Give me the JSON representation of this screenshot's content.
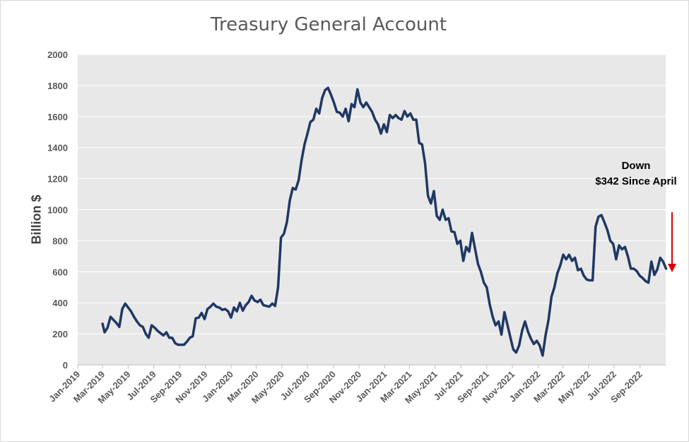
{
  "chart_data": {
    "type": "line",
    "title": "Treasury General Account",
    "ylabel": "Billion $",
    "xlabel": "",
    "ylim": [
      0,
      2000
    ],
    "yticks": [
      0,
      200,
      400,
      600,
      800,
      1000,
      1200,
      1400,
      1600,
      1800,
      2000
    ],
    "xlim": [
      "2019-01-01",
      "2022-11-01"
    ],
    "xtick_labels": [
      "Jan-2019",
      "Mar-2019",
      "May-2019",
      "Jul-2019",
      "Sep-2019",
      "Nov-2019",
      "Jan-2020",
      "Mar-2020",
      "May-2020",
      "Jul-2020",
      "Sep-2020",
      "Nov-2020",
      "Jan-2021",
      "Mar-2021",
      "May-2021",
      "Jul-2021",
      "Sep-2021",
      "Nov-2021",
      "Jan-2022",
      "Mar-2022",
      "May-2022",
      "Jul-2022",
      "Sep-2022"
    ],
    "xtick_dates": [
      "2019-01-01",
      "2019-03-01",
      "2019-05-01",
      "2019-07-01",
      "2019-09-01",
      "2019-11-01",
      "2020-01-01",
      "2020-03-01",
      "2020-05-01",
      "2020-07-01",
      "2020-09-01",
      "2020-11-01",
      "2021-01-01",
      "2021-03-01",
      "2021-05-01",
      "2021-07-01",
      "2021-09-01",
      "2021-11-01",
      "2022-01-01",
      "2022-03-01",
      "2022-05-01",
      "2022-07-01",
      "2022-09-01"
    ],
    "grid": true,
    "series": [
      {
        "color": "#1f3864",
        "points": [
          [
            "2019-03-01",
            265
          ],
          [
            "2019-03-06",
            210
          ],
          [
            "2019-03-13",
            240
          ],
          [
            "2019-03-20",
            310
          ],
          [
            "2019-03-27",
            290
          ],
          [
            "2019-04-03",
            270
          ],
          [
            "2019-04-10",
            245
          ],
          [
            "2019-04-17",
            360
          ],
          [
            "2019-04-24",
            395
          ],
          [
            "2019-05-01",
            370
          ],
          [
            "2019-05-08",
            345
          ],
          [
            "2019-05-15",
            310
          ],
          [
            "2019-05-22",
            280
          ],
          [
            "2019-05-29",
            255
          ],
          [
            "2019-06-05",
            245
          ],
          [
            "2019-06-12",
            200
          ],
          [
            "2019-06-19",
            175
          ],
          [
            "2019-06-26",
            255
          ],
          [
            "2019-07-03",
            240
          ],
          [
            "2019-07-10",
            220
          ],
          [
            "2019-07-17",
            205
          ],
          [
            "2019-07-24",
            190
          ],
          [
            "2019-07-31",
            210
          ],
          [
            "2019-08-07",
            175
          ],
          [
            "2019-08-14",
            175
          ],
          [
            "2019-08-21",
            140
          ],
          [
            "2019-08-28",
            130
          ],
          [
            "2019-09-04",
            130
          ],
          [
            "2019-09-11",
            130
          ],
          [
            "2019-09-18",
            150
          ],
          [
            "2019-09-25",
            175
          ],
          [
            "2019-10-02",
            185
          ],
          [
            "2019-10-09",
            300
          ],
          [
            "2019-10-16",
            305
          ],
          [
            "2019-10-23",
            335
          ],
          [
            "2019-10-30",
            295
          ],
          [
            "2019-11-06",
            360
          ],
          [
            "2019-11-13",
            375
          ],
          [
            "2019-11-20",
            395
          ],
          [
            "2019-11-27",
            375
          ],
          [
            "2019-12-04",
            370
          ],
          [
            "2019-12-11",
            355
          ],
          [
            "2019-12-18",
            360
          ],
          [
            "2019-12-25",
            345
          ],
          [
            "2020-01-01",
            305
          ],
          [
            "2020-01-08",
            370
          ],
          [
            "2020-01-15",
            345
          ],
          [
            "2020-01-22",
            400
          ],
          [
            "2020-01-29",
            350
          ],
          [
            "2020-02-05",
            385
          ],
          [
            "2020-02-12",
            405
          ],
          [
            "2020-02-19",
            445
          ],
          [
            "2020-02-26",
            415
          ],
          [
            "2020-03-04",
            405
          ],
          [
            "2020-03-11",
            420
          ],
          [
            "2020-03-18",
            385
          ],
          [
            "2020-03-25",
            380
          ],
          [
            "2020-04-01",
            375
          ],
          [
            "2020-04-08",
            395
          ],
          [
            "2020-04-15",
            380
          ],
          [
            "2020-04-22",
            500
          ],
          [
            "2020-04-29",
            820
          ],
          [
            "2020-05-06",
            845
          ],
          [
            "2020-05-13",
            920
          ],
          [
            "2020-05-20",
            1060
          ],
          [
            "2020-05-27",
            1140
          ],
          [
            "2020-06-03",
            1130
          ],
          [
            "2020-06-10",
            1190
          ],
          [
            "2020-06-17",
            1320
          ],
          [
            "2020-06-24",
            1420
          ],
          [
            "2020-07-01",
            1490
          ],
          [
            "2020-07-08",
            1565
          ],
          [
            "2020-07-15",
            1580
          ],
          [
            "2020-07-22",
            1650
          ],
          [
            "2020-07-29",
            1620
          ],
          [
            "2020-08-05",
            1720
          ],
          [
            "2020-08-12",
            1770
          ],
          [
            "2020-08-19",
            1785
          ],
          [
            "2020-08-26",
            1740
          ],
          [
            "2020-09-02",
            1690
          ],
          [
            "2020-09-09",
            1630
          ],
          [
            "2020-09-16",
            1625
          ],
          [
            "2020-09-23",
            1600
          ],
          [
            "2020-09-30",
            1650
          ],
          [
            "2020-10-07",
            1570
          ],
          [
            "2020-10-14",
            1680
          ],
          [
            "2020-10-21",
            1660
          ],
          [
            "2020-10-28",
            1775
          ],
          [
            "2020-11-04",
            1690
          ],
          [
            "2020-11-11",
            1660
          ],
          [
            "2020-11-18",
            1690
          ],
          [
            "2020-11-25",
            1660
          ],
          [
            "2020-12-02",
            1630
          ],
          [
            "2020-12-09",
            1580
          ],
          [
            "2020-12-16",
            1550
          ],
          [
            "2020-12-23",
            1490
          ],
          [
            "2020-12-30",
            1550
          ],
          [
            "2021-01-06",
            1500
          ],
          [
            "2021-01-13",
            1610
          ],
          [
            "2021-01-20",
            1590
          ],
          [
            "2021-01-27",
            1610
          ],
          [
            "2021-02-03",
            1590
          ],
          [
            "2021-02-10",
            1580
          ],
          [
            "2021-02-17",
            1635
          ],
          [
            "2021-02-24",
            1600
          ],
          [
            "2021-03-03",
            1620
          ],
          [
            "2021-03-10",
            1580
          ],
          [
            "2021-03-17",
            1580
          ],
          [
            "2021-03-24",
            1430
          ],
          [
            "2021-03-31",
            1420
          ],
          [
            "2021-04-07",
            1300
          ],
          [
            "2021-04-14",
            1090
          ],
          [
            "2021-04-21",
            1040
          ],
          [
            "2021-04-28",
            1120
          ],
          [
            "2021-05-05",
            960
          ],
          [
            "2021-05-12",
            935
          ],
          [
            "2021-05-19",
            1000
          ],
          [
            "2021-05-26",
            935
          ],
          [
            "2021-06-02",
            945
          ],
          [
            "2021-06-09",
            860
          ],
          [
            "2021-06-16",
            855
          ],
          [
            "2021-06-23",
            780
          ],
          [
            "2021-06-30",
            800
          ],
          [
            "2021-07-07",
            670
          ],
          [
            "2021-07-14",
            760
          ],
          [
            "2021-07-21",
            730
          ],
          [
            "2021-07-28",
            850
          ],
          [
            "2021-08-04",
            750
          ],
          [
            "2021-08-11",
            650
          ],
          [
            "2021-08-18",
            600
          ],
          [
            "2021-08-25",
            530
          ],
          [
            "2021-09-01",
            500
          ],
          [
            "2021-09-08",
            390
          ],
          [
            "2021-09-15",
            310
          ],
          [
            "2021-09-22",
            255
          ],
          [
            "2021-09-29",
            280
          ],
          [
            "2021-10-06",
            195
          ],
          [
            "2021-10-13",
            340
          ],
          [
            "2021-10-20",
            260
          ],
          [
            "2021-10-27",
            180
          ],
          [
            "2021-11-03",
            100
          ],
          [
            "2021-11-10",
            80
          ],
          [
            "2021-11-17",
            125
          ],
          [
            "2021-11-24",
            220
          ],
          [
            "2021-12-01",
            280
          ],
          [
            "2021-12-08",
            215
          ],
          [
            "2021-12-15",
            170
          ],
          [
            "2021-12-22",
            135
          ],
          [
            "2021-12-29",
            155
          ],
          [
            "2022-01-05",
            125
          ],
          [
            "2022-01-12",
            60
          ],
          [
            "2022-01-19",
            190
          ],
          [
            "2022-01-26",
            290
          ],
          [
            "2022-02-02",
            440
          ],
          [
            "2022-02-09",
            500
          ],
          [
            "2022-02-16",
            590
          ],
          [
            "2022-02-23",
            640
          ],
          [
            "2022-03-02",
            710
          ],
          [
            "2022-03-09",
            680
          ],
          [
            "2022-03-16",
            710
          ],
          [
            "2022-03-23",
            670
          ],
          [
            "2022-03-30",
            690
          ],
          [
            "2022-04-06",
            610
          ],
          [
            "2022-04-13",
            620
          ],
          [
            "2022-04-20",
            575
          ],
          [
            "2022-04-27",
            550
          ],
          [
            "2022-05-04",
            545
          ],
          [
            "2022-05-11",
            545
          ],
          [
            "2022-05-18",
            890
          ],
          [
            "2022-05-25",
            955
          ],
          [
            "2022-06-01",
            965
          ],
          [
            "2022-06-08",
            920
          ],
          [
            "2022-06-15",
            870
          ],
          [
            "2022-06-22",
            800
          ],
          [
            "2022-06-29",
            780
          ],
          [
            "2022-07-06",
            680
          ],
          [
            "2022-07-13",
            770
          ],
          [
            "2022-07-20",
            745
          ],
          [
            "2022-07-27",
            760
          ],
          [
            "2022-08-03",
            700
          ],
          [
            "2022-08-10",
            620
          ],
          [
            "2022-08-17",
            620
          ],
          [
            "2022-08-24",
            605
          ],
          [
            "2022-08-31",
            575
          ],
          [
            "2022-09-07",
            560
          ],
          [
            "2022-09-14",
            540
          ],
          [
            "2022-09-21",
            530
          ],
          [
            "2022-09-28",
            665
          ],
          [
            "2022-10-05",
            580
          ],
          [
            "2022-10-12",
            615
          ],
          [
            "2022-10-19",
            690
          ],
          [
            "2022-10-26",
            665
          ],
          [
            "2022-11-02",
            620
          ]
        ]
      }
    ],
    "annotations": [
      {
        "line1": "Down",
        "line2": "$342 Since April",
        "arrow_color": "#e00000"
      }
    ]
  },
  "colors": {
    "line": "#1f3864",
    "arrow": "#e00000",
    "plot_bg": "#e8e8e8",
    "grid": "#ffffff",
    "axis_text": "#595959"
  }
}
